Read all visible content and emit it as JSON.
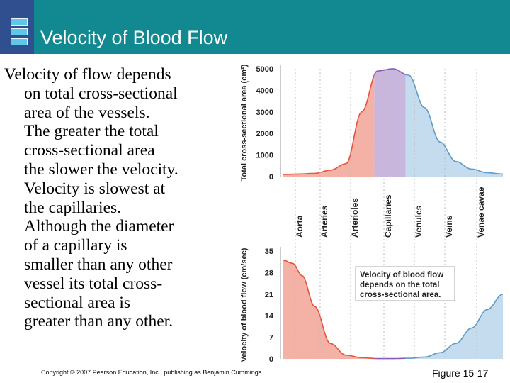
{
  "slide": {
    "title": "Velocity of Blood Flow",
    "body_lines": [
      "Velocity of flow depends",
      "on total cross-sectional",
      "area of the vessels.",
      "The greater the total",
      "cross-sectional area",
      "the slower the velocity.",
      "Velocity is slowest at",
      "the capillaries.",
      "Although the diameter",
      "of a capillary is",
      "smaller than any other",
      "vessel its total cross-",
      "sectional area is",
      "greater than any other."
    ],
    "copyright": "Copyright © 2007 Pearson Education, Inc., publishing as Benjamin Cummings",
    "figure_ref": "Figure 15-17"
  },
  "colors": {
    "header": "#128890",
    "arterial_fill": "#f4b2a6",
    "arterial_line": "#e8533f",
    "capillary_fill": "#c9b6dc",
    "capillary_line": "#8a5cb8",
    "venous_fill": "#c5dcee",
    "venous_line": "#5d9cc8"
  },
  "chart_data": [
    {
      "type": "area",
      "ylabel": "Total cross-sectional area (cm²)",
      "yticks": [
        0,
        1000,
        2000,
        3000,
        4000,
        5000
      ],
      "ylim": [
        0,
        5000
      ],
      "categories": [
        "Aorta",
        "Arteries",
        "Arterioles",
        "Capillaries",
        "Venules",
        "Veins",
        "Venae cavae"
      ],
      "x": [
        0,
        0.5,
        1,
        1.5,
        2,
        2.5,
        3,
        3.5,
        4,
        4.5,
        5,
        5.5,
        6,
        6.5,
        7
      ],
      "values": [
        100,
        120,
        150,
        300,
        600,
        3000,
        4900,
        5000,
        4700,
        3200,
        1600,
        700,
        350,
        180,
        120
      ],
      "regions": [
        {
          "name": "arterial",
          "from": 0,
          "to": 2.9
        },
        {
          "name": "capillary",
          "from": 2.9,
          "to": 3.9
        },
        {
          "name": "venous",
          "from": 3.9,
          "to": 7
        }
      ]
    },
    {
      "type": "area",
      "ylabel": "Velocity of blood flow (cm/sec)",
      "yticks": [
        0,
        7,
        14,
        21,
        28,
        35
      ],
      "ylim": [
        0,
        35
      ],
      "categories": [
        "Aorta",
        "Arteries",
        "Arterioles",
        "Capillaries",
        "Venules",
        "Veins",
        "Venae cavae"
      ],
      "x": [
        0,
        0.3,
        0.6,
        1,
        1.5,
        2,
        2.5,
        3,
        3.5,
        4,
        4.5,
        5,
        5.5,
        6,
        6.5,
        7
      ],
      "values": [
        32,
        31,
        27,
        17,
        5,
        1.2,
        0.4,
        0.1,
        0.1,
        0.2,
        0.6,
        2,
        5,
        10,
        16,
        21
      ],
      "regions": [
        {
          "name": "arterial",
          "from": 0,
          "to": 2.9
        },
        {
          "name": "capillary",
          "from": 2.9,
          "to": 3.9
        },
        {
          "name": "venous",
          "from": 3.9,
          "to": 7
        }
      ],
      "annotation": [
        "Velocity of blood flow",
        "depends on the total",
        "cross-sectional area."
      ]
    }
  ]
}
